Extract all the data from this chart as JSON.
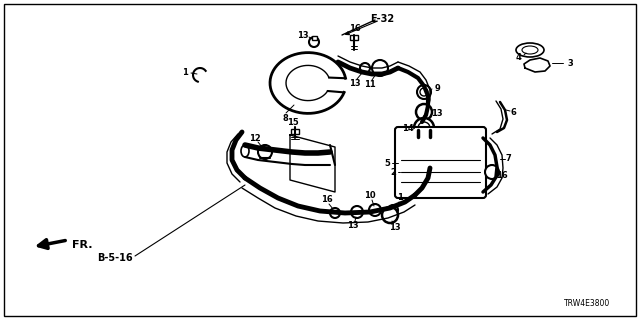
{
  "background_color": "#ffffff",
  "line_color": "#000000",
  "ref_code": "E-32",
  "part_number": "TRW4E3800",
  "direction_label": "FR.",
  "page_ref": "B-5-16",
  "figsize": [
    6.4,
    3.2
  ],
  "dpi": 100
}
